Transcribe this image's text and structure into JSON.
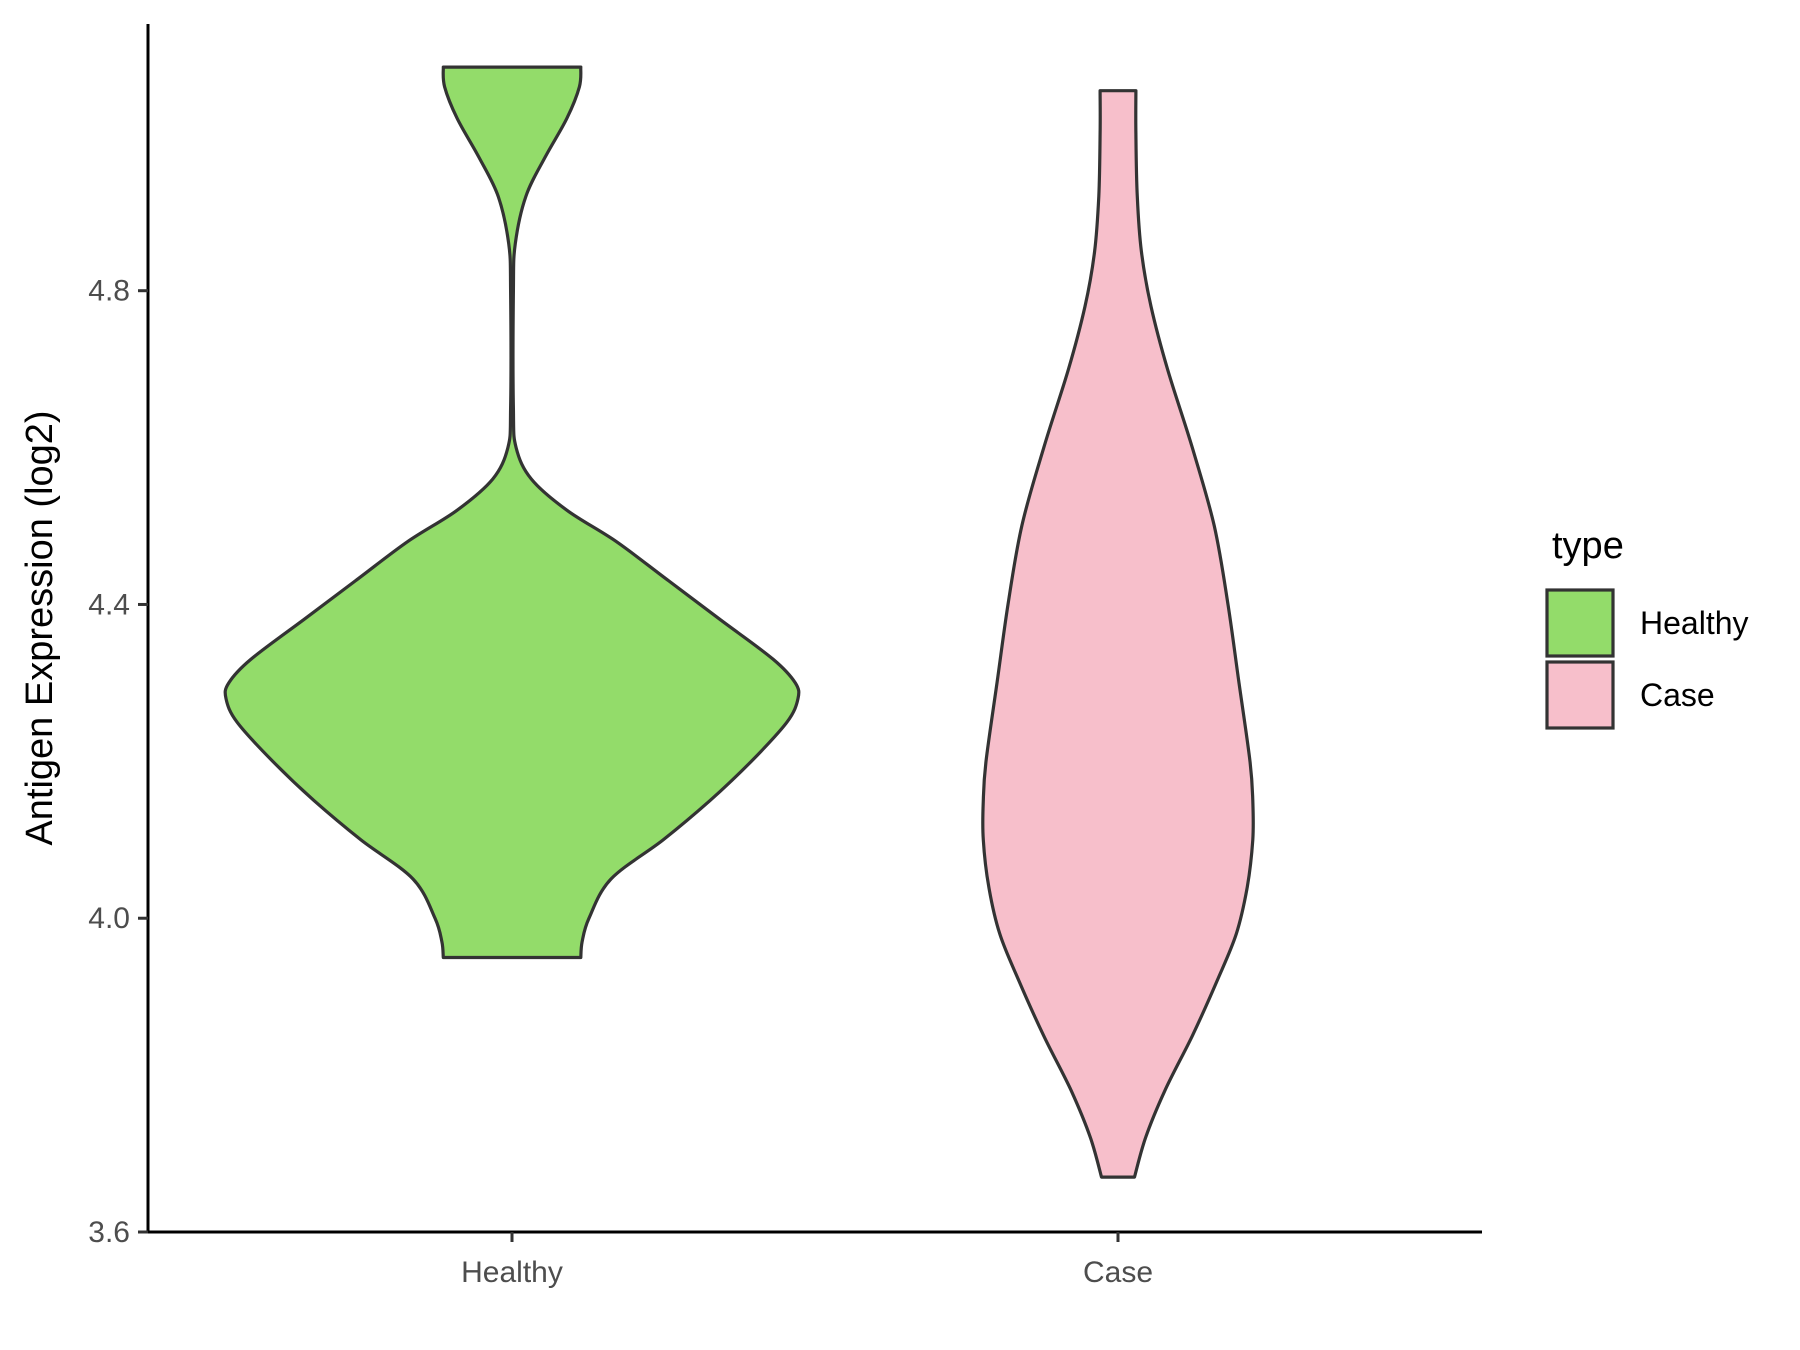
{
  "chart_data": {
    "type": "violin",
    "categories": [
      "Healthy",
      "Case"
    ],
    "ylabel": "Antigen Expression (log2)",
    "xlabel": "",
    "ylim": [
      3.6,
      5.14
    ],
    "yticks": [
      3.6,
      4.0,
      4.4,
      4.8
    ],
    "ytick_labels": [
      "3.6",
      "4.0",
      "4.4",
      "4.8"
    ],
    "grid": false,
    "legend": {
      "title": "type",
      "placement": "right",
      "entries": [
        {
          "label": "Healthy",
          "color": "#93dc6a"
        },
        {
          "label": "Case",
          "color": "#f7bfcb"
        }
      ]
    },
    "series": [
      {
        "name": "Healthy",
        "color": "#93dc6a",
        "min": 3.95,
        "max": 5.085,
        "density_profile": [
          [
            3.95,
            0.25
          ],
          [
            3.97,
            0.255
          ],
          [
            4.0,
            0.28
          ],
          [
            4.05,
            0.36
          ],
          [
            4.1,
            0.55
          ],
          [
            4.15,
            0.72
          ],
          [
            4.2,
            0.87
          ],
          [
            4.25,
            1.0
          ],
          [
            4.28,
            1.04
          ],
          [
            4.3,
            1.03
          ],
          [
            4.33,
            0.95
          ],
          [
            4.38,
            0.76
          ],
          [
            4.43,
            0.57
          ],
          [
            4.48,
            0.38
          ],
          [
            4.52,
            0.2
          ],
          [
            4.56,
            0.07
          ],
          [
            4.6,
            0.015
          ],
          [
            4.65,
            0.005
          ],
          [
            4.8,
            0.005
          ],
          [
            4.86,
            0.012
          ],
          [
            4.92,
            0.05
          ],
          [
            4.97,
            0.12
          ],
          [
            5.02,
            0.2
          ],
          [
            5.06,
            0.245
          ],
          [
            5.085,
            0.25
          ]
        ]
      },
      {
        "name": "Case",
        "color": "#f7bfcb",
        "min": 3.67,
        "max": 5.055,
        "density_profile": [
          [
            3.67,
            0.06
          ],
          [
            3.72,
            0.1
          ],
          [
            3.78,
            0.17
          ],
          [
            3.85,
            0.27
          ],
          [
            3.92,
            0.36
          ],
          [
            3.98,
            0.43
          ],
          [
            4.04,
            0.47
          ],
          [
            4.1,
            0.49
          ],
          [
            4.15,
            0.49
          ],
          [
            4.2,
            0.48
          ],
          [
            4.3,
            0.44
          ],
          [
            4.4,
            0.4
          ],
          [
            4.5,
            0.35
          ],
          [
            4.6,
            0.27
          ],
          [
            4.7,
            0.18
          ],
          [
            4.78,
            0.12
          ],
          [
            4.85,
            0.085
          ],
          [
            4.92,
            0.07
          ],
          [
            5.0,
            0.065
          ],
          [
            5.055,
            0.065
          ]
        ]
      }
    ]
  }
}
